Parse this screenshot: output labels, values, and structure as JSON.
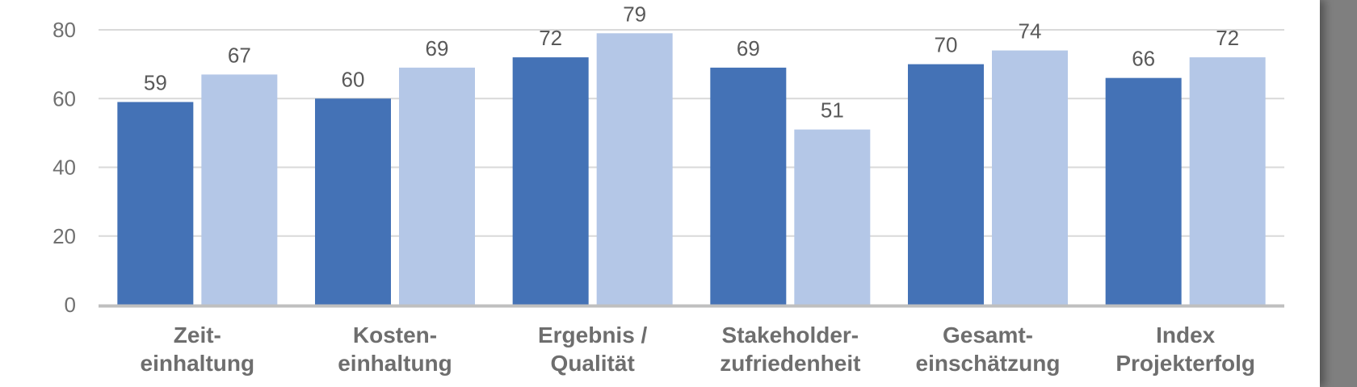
{
  "chart_data": {
    "type": "bar",
    "categories": [
      [
        "Zeit-",
        "einhaltung"
      ],
      [
        "Kosten-",
        "einhaltung"
      ],
      [
        "Ergebnis /",
        "Qualität"
      ],
      [
        "Stakeholder-",
        "zufriedenheit"
      ],
      [
        "Gesamt-",
        "einschätzung"
      ],
      [
        "Index",
        "Projekterfolg"
      ]
    ],
    "series": [
      {
        "values": [
          59,
          60,
          72,
          69,
          70,
          66
        ],
        "color": "#4472b6"
      },
      {
        "values": [
          67,
          69,
          79,
          51,
          74,
          72
        ],
        "color": "#b4c7e7"
      }
    ],
    "yticks": [
      "0",
      "20",
      "40",
      "60",
      "80"
    ],
    "ylim": [
      0,
      80
    ],
    "grid": true,
    "legend": "none"
  }
}
